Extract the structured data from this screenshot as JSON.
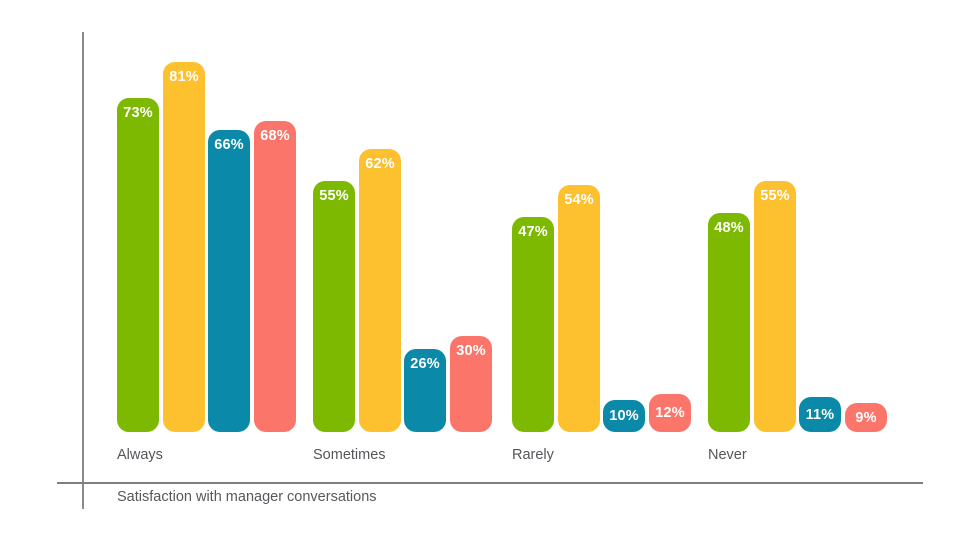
{
  "chart_data": {
    "type": "bar",
    "title": "Satisfaction with manager conversations",
    "categories": [
      "Always",
      "Sometimes",
      "Rarely",
      "Never"
    ],
    "series": [
      {
        "name": "green",
        "color": "#7CB900",
        "values": [
          73,
          55,
          47,
          48
        ]
      },
      {
        "name": "yellow",
        "color": "#FDC02F",
        "values": [
          81,
          62,
          54,
          55
        ]
      },
      {
        "name": "teal",
        "color": "#0B89A8",
        "values": [
          66,
          26,
          10,
          11
        ]
      },
      {
        "name": "salmon",
        "color": "#FC756B",
        "values": [
          68,
          30,
          12,
          9
        ]
      }
    ],
    "value_suffix": "%",
    "value_label_color": "#FFFFFF",
    "category_label_color": "#54565A",
    "axis_color": "#878787",
    "ylim": [
      0,
      100
    ],
    "grid": false,
    "legend": "none"
  }
}
